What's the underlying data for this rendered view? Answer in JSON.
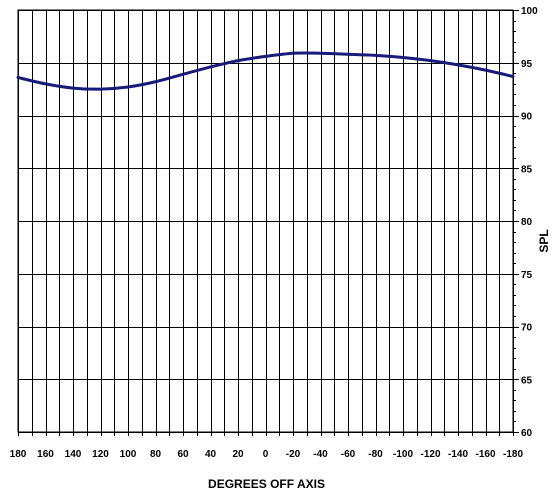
{
  "chart_data": {
    "type": "line",
    "title": "",
    "xlabel": "DEGREES OFF AXIS",
    "ylabel": "SPL",
    "xlim": [
      180,
      -180
    ],
    "ylim": [
      60,
      100
    ],
    "x_ticks": [
      180,
      160,
      140,
      120,
      100,
      80,
      60,
      40,
      20,
      0,
      -20,
      -40,
      -60,
      -80,
      -100,
      -120,
      -140,
      -160,
      -180
    ],
    "y_ticks": [
      60,
      65,
      70,
      75,
      80,
      85,
      90,
      95,
      100
    ],
    "y_tick_labels": [
      "60",
      "65",
      "70",
      "75",
      "80",
      "85",
      "90",
      "95",
      "100"
    ],
    "x_tick_labels": [
      "180",
      "160",
      "140",
      "120",
      "100",
      "80",
      "60",
      "40",
      "20",
      "0",
      "-20",
      "-40",
      "-60",
      "-80",
      "-100",
      "-120",
      "-140",
      "-160",
      "-180"
    ],
    "grid": true,
    "line_color": "#1a1a7a",
    "series": [
      {
        "x": [
          180,
          160,
          140,
          120,
          100,
          80,
          60,
          40,
          20,
          0,
          -20,
          -40,
          -60,
          -80,
          -100,
          -120,
          -140,
          -160,
          -180
        ],
        "values": [
          93.6,
          93.0,
          92.6,
          92.5,
          92.7,
          93.2,
          93.9,
          94.6,
          95.2,
          95.6,
          95.9,
          95.9,
          95.8,
          95.7,
          95.5,
          95.2,
          94.8,
          94.3,
          93.7
        ]
      }
    ]
  }
}
